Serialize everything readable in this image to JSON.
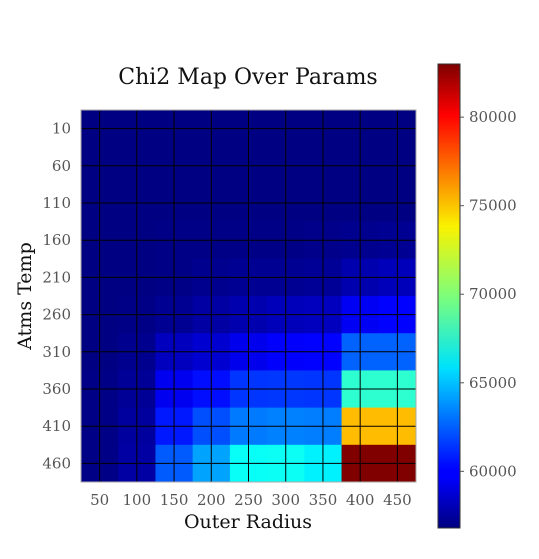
{
  "chart_data": {
    "type": "heatmap",
    "title": "Chi2 Map Over Params",
    "xlabel": "Outer Radius",
    "ylabel": "Atms Temp",
    "x_tick_labels": [
      "50",
      "100",
      "150",
      "200",
      "250",
      "300",
      "350",
      "400",
      "450"
    ],
    "y_tick_labels": [
      "10",
      "60",
      "110",
      "160",
      "210",
      "260",
      "310",
      "360",
      "410",
      "460"
    ],
    "colormap": "jet",
    "grid": true,
    "grid_color": "#000000",
    "colorbar": {
      "range": [
        56800,
        83000
      ],
      "ticks": [
        60000,
        65000,
        70000,
        75000,
        80000
      ],
      "tick_labels": [
        "60000",
        "65000",
        "70000",
        "75000",
        "80000"
      ]
    },
    "values": [
      [
        56900,
        56900,
        56900,
        56900,
        56900,
        56900,
        56900,
        56900,
        56900
      ],
      [
        56900,
        56900,
        56900,
        56900,
        56900,
        56900,
        56900,
        56900,
        56900
      ],
      [
        56900,
        56900,
        56900,
        56900,
        56900,
        56900,
        56900,
        56900,
        56900
      ],
      [
        56900,
        56900,
        57000,
        57000,
        57000,
        57000,
        57100,
        57200,
        57300
      ],
      [
        56900,
        56900,
        57000,
        57200,
        57300,
        57300,
        57400,
        58000,
        58300
      ],
      [
        56900,
        57000,
        57300,
        57700,
        58000,
        58300,
        58400,
        59800,
        60100
      ],
      [
        56900,
        57200,
        58400,
        58900,
        59600,
        60000,
        60100,
        62600,
        62600
      ],
      [
        57000,
        57400,
        59700,
        60400,
        61400,
        61500,
        61400,
        67800,
        67800
      ],
      [
        57000,
        57600,
        60700,
        62100,
        63200,
        63400,
        63300,
        74900,
        74900
      ],
      [
        57000,
        57700,
        62400,
        64300,
        66800,
        66900,
        66300,
        83000,
        83000
      ]
    ]
  }
}
